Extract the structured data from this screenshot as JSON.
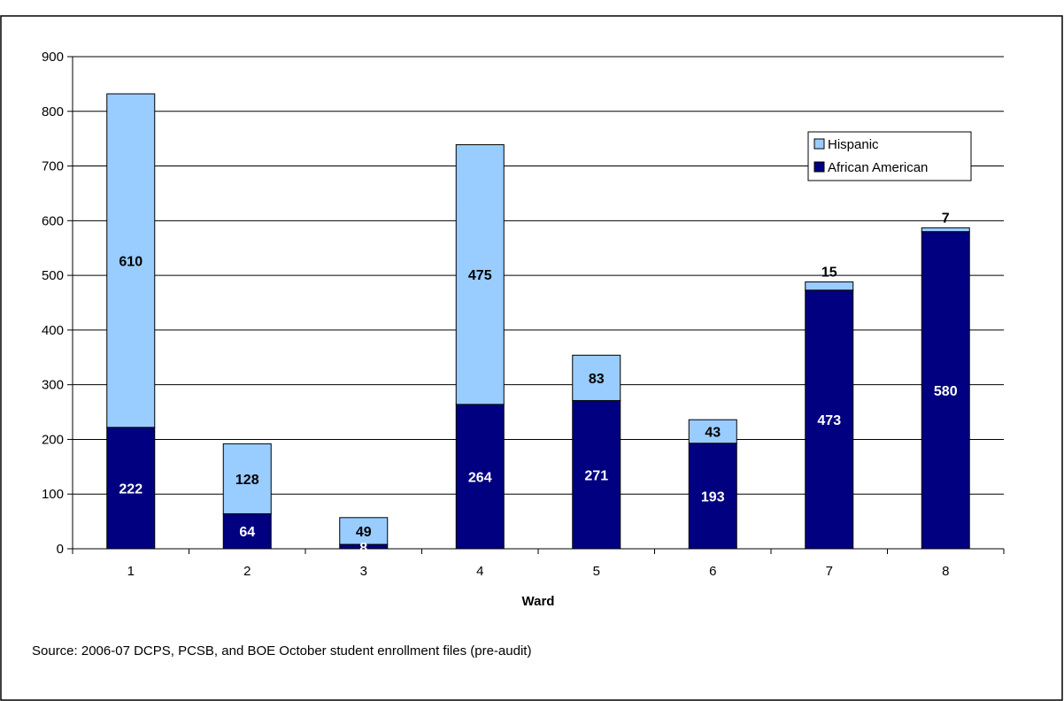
{
  "colors": {
    "african_american": "#000080",
    "hispanic": "#99ccff",
    "gridline": "#000000",
    "frame": "#000000"
  },
  "chart_data": {
    "type": "bar",
    "stacked": true,
    "title": "",
    "xlabel": "Ward",
    "ylabel": "",
    "categories": [
      "1",
      "2",
      "3",
      "4",
      "5",
      "6",
      "7",
      "8"
    ],
    "series": [
      {
        "name": "African American",
        "values": [
          222,
          64,
          8,
          264,
          271,
          193,
          473,
          580
        ]
      },
      {
        "name": "Hispanic",
        "values": [
          610,
          128,
          49,
          475,
          83,
          43,
          15,
          7
        ]
      }
    ],
    "ylim": [
      0,
      900
    ],
    "yticks": [
      0,
      100,
      200,
      300,
      400,
      500,
      600,
      700,
      800,
      900
    ],
    "grid": true,
    "legend_position": "top-right",
    "legend_order": [
      "Hispanic",
      "African American"
    ]
  },
  "source_note": "Source: 2006-07 DCPS, PCSB, and BOE October student enrollment files (pre-audit)"
}
